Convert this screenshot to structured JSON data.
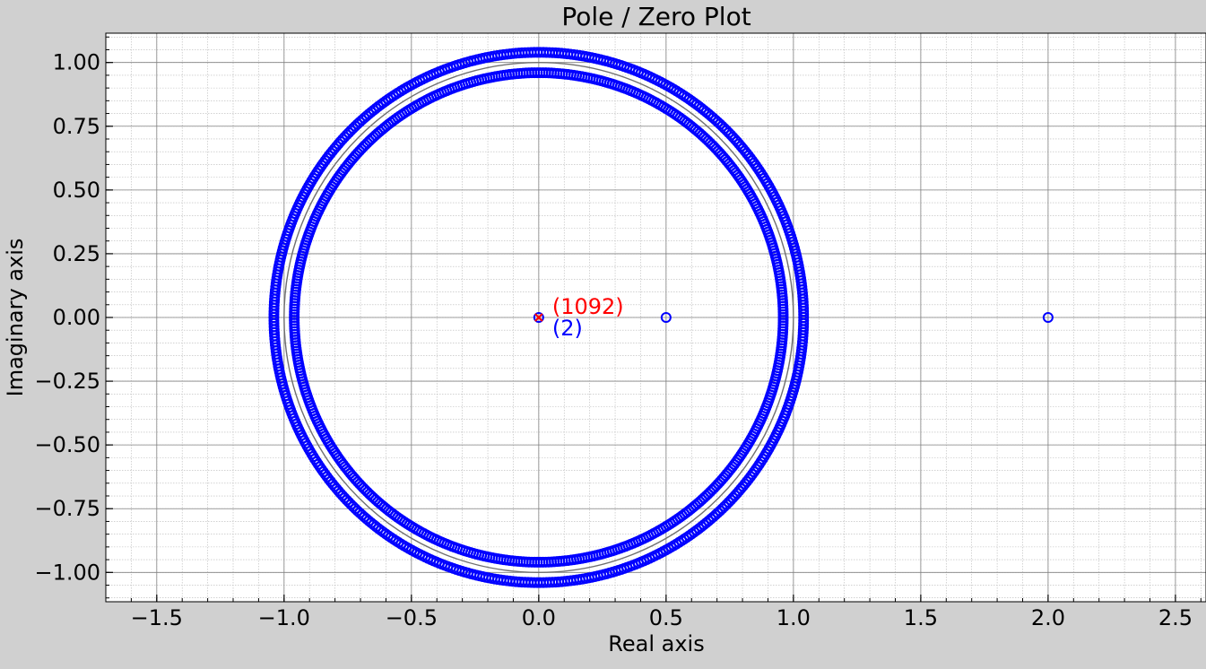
{
  "chart_data": {
    "type": "scatter",
    "title": "Pole / Zero Plot",
    "xlabel": "Real axis",
    "ylabel": "Imaginary axis",
    "xlim": [
      -1.7,
      2.62
    ],
    "ylim": [
      -1.115,
      1.115
    ],
    "x_ticks": [
      -1.5,
      -1.0,
      -0.5,
      0.0,
      0.5,
      1.0,
      1.5,
      2.0,
      2.5
    ],
    "x_tick_labels": [
      "−1.5",
      "−1.0",
      "−0.5",
      "0.0",
      "0.5",
      "1.0",
      "1.5",
      "2.0",
      "2.5"
    ],
    "y_ticks": [
      1.0,
      0.75,
      0.5,
      0.25,
      0.0,
      -0.25,
      -0.5,
      -0.75,
      -1.0
    ],
    "y_tick_labels": [
      "1.00",
      "0.75",
      "0.50",
      "0.25",
      "0.00",
      "−0.25",
      "−0.50",
      "−0.75",
      "−1.00"
    ],
    "grid": true,
    "unit_circle": true,
    "series": [
      {
        "kind": "zeros",
        "marker": "o",
        "color": "#0000ff",
        "rings": [
          {
            "radius": 0.96,
            "count": 546
          },
          {
            "radius": 1.04,
            "count": 546
          }
        ],
        "points": [
          {
            "x": 0.0,
            "y": 0.0,
            "multiplicity": 2
          },
          {
            "x": 0.5,
            "y": 0.0
          },
          {
            "x": 2.0,
            "y": 0.0
          }
        ]
      },
      {
        "kind": "poles",
        "marker": "x",
        "color": "#ff0000",
        "points": [
          {
            "x": 0.0,
            "y": 0.0,
            "multiplicity": 1092
          }
        ]
      }
    ],
    "annotations": [
      {
        "text": "(1092)",
        "x": 0.0,
        "y": 0.0,
        "color": "#ff0000",
        "position": "upper-right"
      },
      {
        "text": "(2)",
        "x": 0.0,
        "y": 0.0,
        "color": "#0000ff",
        "position": "lower-right"
      }
    ]
  }
}
